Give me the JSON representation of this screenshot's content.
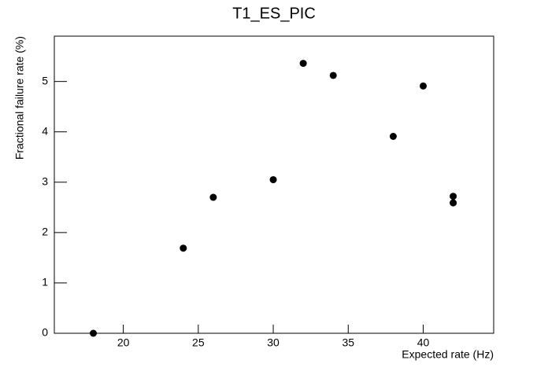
{
  "chart_data": {
    "type": "scatter",
    "title": "T1_ES_PIC",
    "x_label": "Expected rate (Hz)",
    "y_label": "Fractional failure rate (%)",
    "x": [
      18,
      24,
      26,
      30,
      32,
      34,
      38,
      40,
      42,
      42
    ],
    "values": [
      0,
      1.69,
      2.7,
      3.05,
      5.36,
      5.12,
      3.91,
      4.91,
      2.72,
      2.59
    ],
    "color": "#000000",
    "xlim": [
      15.4,
      44.7
    ],
    "xticks": [
      20,
      25,
      30,
      35,
      40
    ],
    "ylim": [
      0,
      5.9
    ],
    "yticks": [
      0,
      1,
      2,
      3,
      4,
      5
    ]
  }
}
